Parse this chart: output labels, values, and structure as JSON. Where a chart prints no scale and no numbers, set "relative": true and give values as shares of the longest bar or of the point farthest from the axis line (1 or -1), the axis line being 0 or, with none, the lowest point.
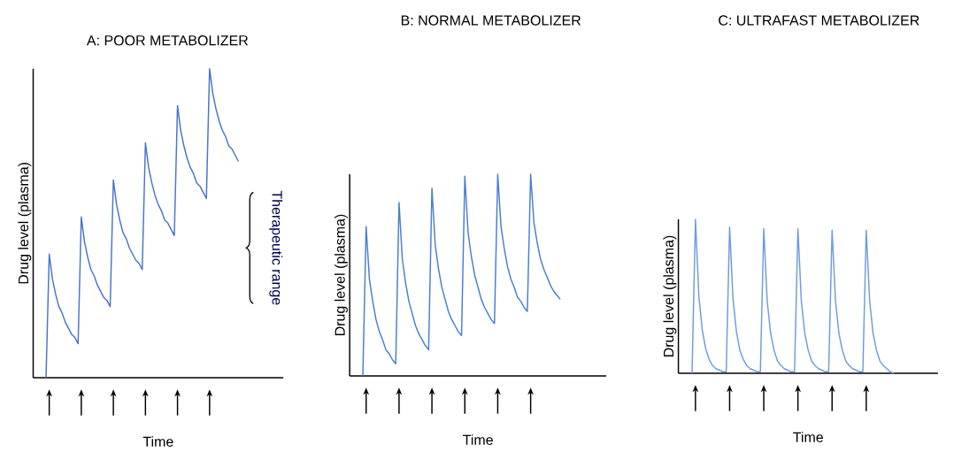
{
  "chart_data": [
    {
      "type": "line",
      "title": "A: POOR METABOLIZER",
      "xlabel": "Time",
      "ylabel": "Drug level (plasma)",
      "relative": true,
      "color": "#4a74cc",
      "categories": [
        null,
        null,
        null,
        null,
        null,
        null,
        null,
        null,
        null,
        null,
        null,
        null,
        null,
        null,
        null,
        null,
        null,
        null,
        null,
        null,
        null,
        null,
        null,
        null,
        null,
        null,
        null,
        null,
        null,
        null,
        null,
        null,
        null,
        null,
        null,
        null,
        null,
        null,
        null,
        null,
        null,
        null,
        null,
        null,
        null,
        null,
        null,
        null,
        null,
        null,
        null,
        null,
        null,
        null,
        null,
        null,
        null,
        null,
        null,
        null,
        null
      ],
      "values": [
        0,
        0.4,
        0.32,
        0.27,
        0.23,
        0.21,
        0.18,
        0.16,
        0.14,
        0.13,
        0.11,
        0.52,
        0.44,
        0.39,
        0.35,
        0.33,
        0.3,
        0.28,
        0.26,
        0.25,
        0.23,
        0.64,
        0.56,
        0.51,
        0.47,
        0.45,
        0.42,
        0.4,
        0.38,
        0.37,
        0.35,
        0.76,
        0.68,
        0.63,
        0.59,
        0.56,
        0.54,
        0.51,
        0.5,
        0.48,
        0.46,
        0.88,
        0.8,
        0.75,
        0.71,
        0.68,
        0.66,
        0.63,
        0.62,
        0.6,
        0.58,
        1.0,
        0.92,
        0.87,
        0.83,
        0.8,
        0.78,
        0.75,
        0.74,
        0.72,
        0.7
      ],
      "annotations": [
        "Therapeutic range"
      ]
    },
    {
      "type": "line",
      "title": "B: NORMAL METABOLIZER",
      "xlabel": "Time",
      "ylabel": "Drug level (plasma)",
      "relative": true,
      "color": "#4a7ed4",
      "categories": [
        null,
        null,
        null,
        null,
        null,
        null,
        null,
        null,
        null,
        null,
        null,
        null,
        null,
        null,
        null,
        null,
        null,
        null,
        null,
        null,
        null,
        null,
        null,
        null,
        null,
        null,
        null,
        null,
        null,
        null,
        null,
        null,
        null,
        null,
        null,
        null,
        null,
        null,
        null,
        null,
        null,
        null,
        null,
        null,
        null,
        null,
        null,
        null,
        null,
        null,
        null,
        null,
        null,
        null,
        null,
        null,
        null,
        null,
        null,
        null,
        null
      ],
      "values": [
        0,
        0.74,
        0.48,
        0.37,
        0.28,
        0.22,
        0.18,
        0.13,
        0.11,
        0.08,
        0.06,
        0.86,
        0.58,
        0.46,
        0.37,
        0.31,
        0.25,
        0.21,
        0.18,
        0.15,
        0.13,
        0.93,
        0.65,
        0.53,
        0.44,
        0.38,
        0.32,
        0.28,
        0.25,
        0.22,
        0.2,
        0.99,
        0.71,
        0.59,
        0.5,
        0.44,
        0.38,
        0.34,
        0.31,
        0.28,
        0.26,
        1.0,
        0.74,
        0.63,
        0.54,
        0.48,
        0.44,
        0.39,
        0.37,
        0.34,
        0.32,
        1.0,
        0.76,
        0.66,
        0.58,
        0.53,
        0.49,
        0.45,
        0.42,
        0.4,
        0.38
      ]
    },
    {
      "type": "line",
      "title": "C: ULTRAFAST METABOLIZER",
      "xlabel": "Time",
      "ylabel": "Drug level (plasma)",
      "relative": true,
      "color": "#6f9be0",
      "categories": [
        null,
        null,
        null,
        null,
        null,
        null,
        null,
        null,
        null,
        null,
        null,
        null,
        null,
        null,
        null,
        null,
        null,
        null,
        null,
        null,
        null,
        null,
        null,
        null,
        null,
        null,
        null,
        null,
        null,
        null,
        null,
        null,
        null,
        null,
        null,
        null,
        null,
        null,
        null,
        null,
        null,
        null,
        null,
        null,
        null,
        null,
        null,
        null,
        null,
        null,
        null,
        null,
        null,
        null,
        null,
        null,
        null,
        null,
        null,
        null
      ],
      "values": [
        0,
        1.0,
        0.5,
        0.28,
        0.16,
        0.09,
        0.05,
        0.03,
        0.02,
        0.01,
        0.01,
        0.95,
        0.48,
        0.27,
        0.15,
        0.09,
        0.05,
        0.03,
        0.02,
        0.01,
        0.01,
        0.94,
        0.47,
        0.26,
        0.15,
        0.08,
        0.05,
        0.03,
        0.02,
        0.01,
        0.01,
        0.94,
        0.47,
        0.26,
        0.15,
        0.08,
        0.05,
        0.03,
        0.02,
        0.01,
        0.01,
        0.93,
        0.47,
        0.26,
        0.15,
        0.08,
        0.05,
        0.03,
        0.02,
        0.01,
        0.01,
        0.93,
        0.47,
        0.26,
        0.15,
        0.08,
        0.05,
        0.03,
        0.01,
        0
      ]
    }
  ]
}
